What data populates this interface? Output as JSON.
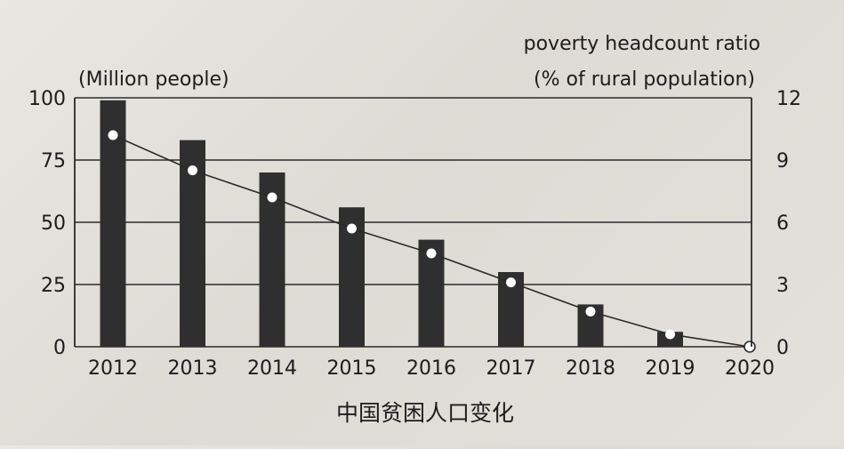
{
  "chart_data": {
    "type": "bar",
    "caption": "中国贫困人口变化",
    "categories": [
      "2012",
      "2013",
      "2014",
      "2015",
      "2016",
      "2017",
      "2018",
      "2019",
      "2020"
    ],
    "series": [
      {
        "name": "(Million people)",
        "type": "bar",
        "axis": "left",
        "values": [
          99,
          83,
          70,
          56,
          43,
          30,
          17,
          6,
          0
        ]
      },
      {
        "name": "poverty headcount ratio (% of rural population)",
        "type": "line",
        "axis": "right",
        "values": [
          10.2,
          8.5,
          7.2,
          5.7,
          4.5,
          3.1,
          1.7,
          0.6,
          0
        ]
      }
    ],
    "left_axis": {
      "label": "(Million people)",
      "ylim": [
        0,
        100
      ],
      "ticks": [
        "0",
        "25",
        "50",
        "75",
        "100"
      ]
    },
    "right_axis": {
      "label_line1": "poverty headcount ratio",
      "label_line2": "(% of rural population)",
      "ylim": [
        0,
        12
      ],
      "ticks": [
        "0",
        "3",
        "6",
        "9",
        "12"
      ]
    },
    "grid": "horizontal",
    "colors": {
      "bar": "#2f2f2f",
      "line": "#2a2a2a",
      "marker_fill": "#ffffff",
      "grid": "#2a2a2a"
    }
  }
}
